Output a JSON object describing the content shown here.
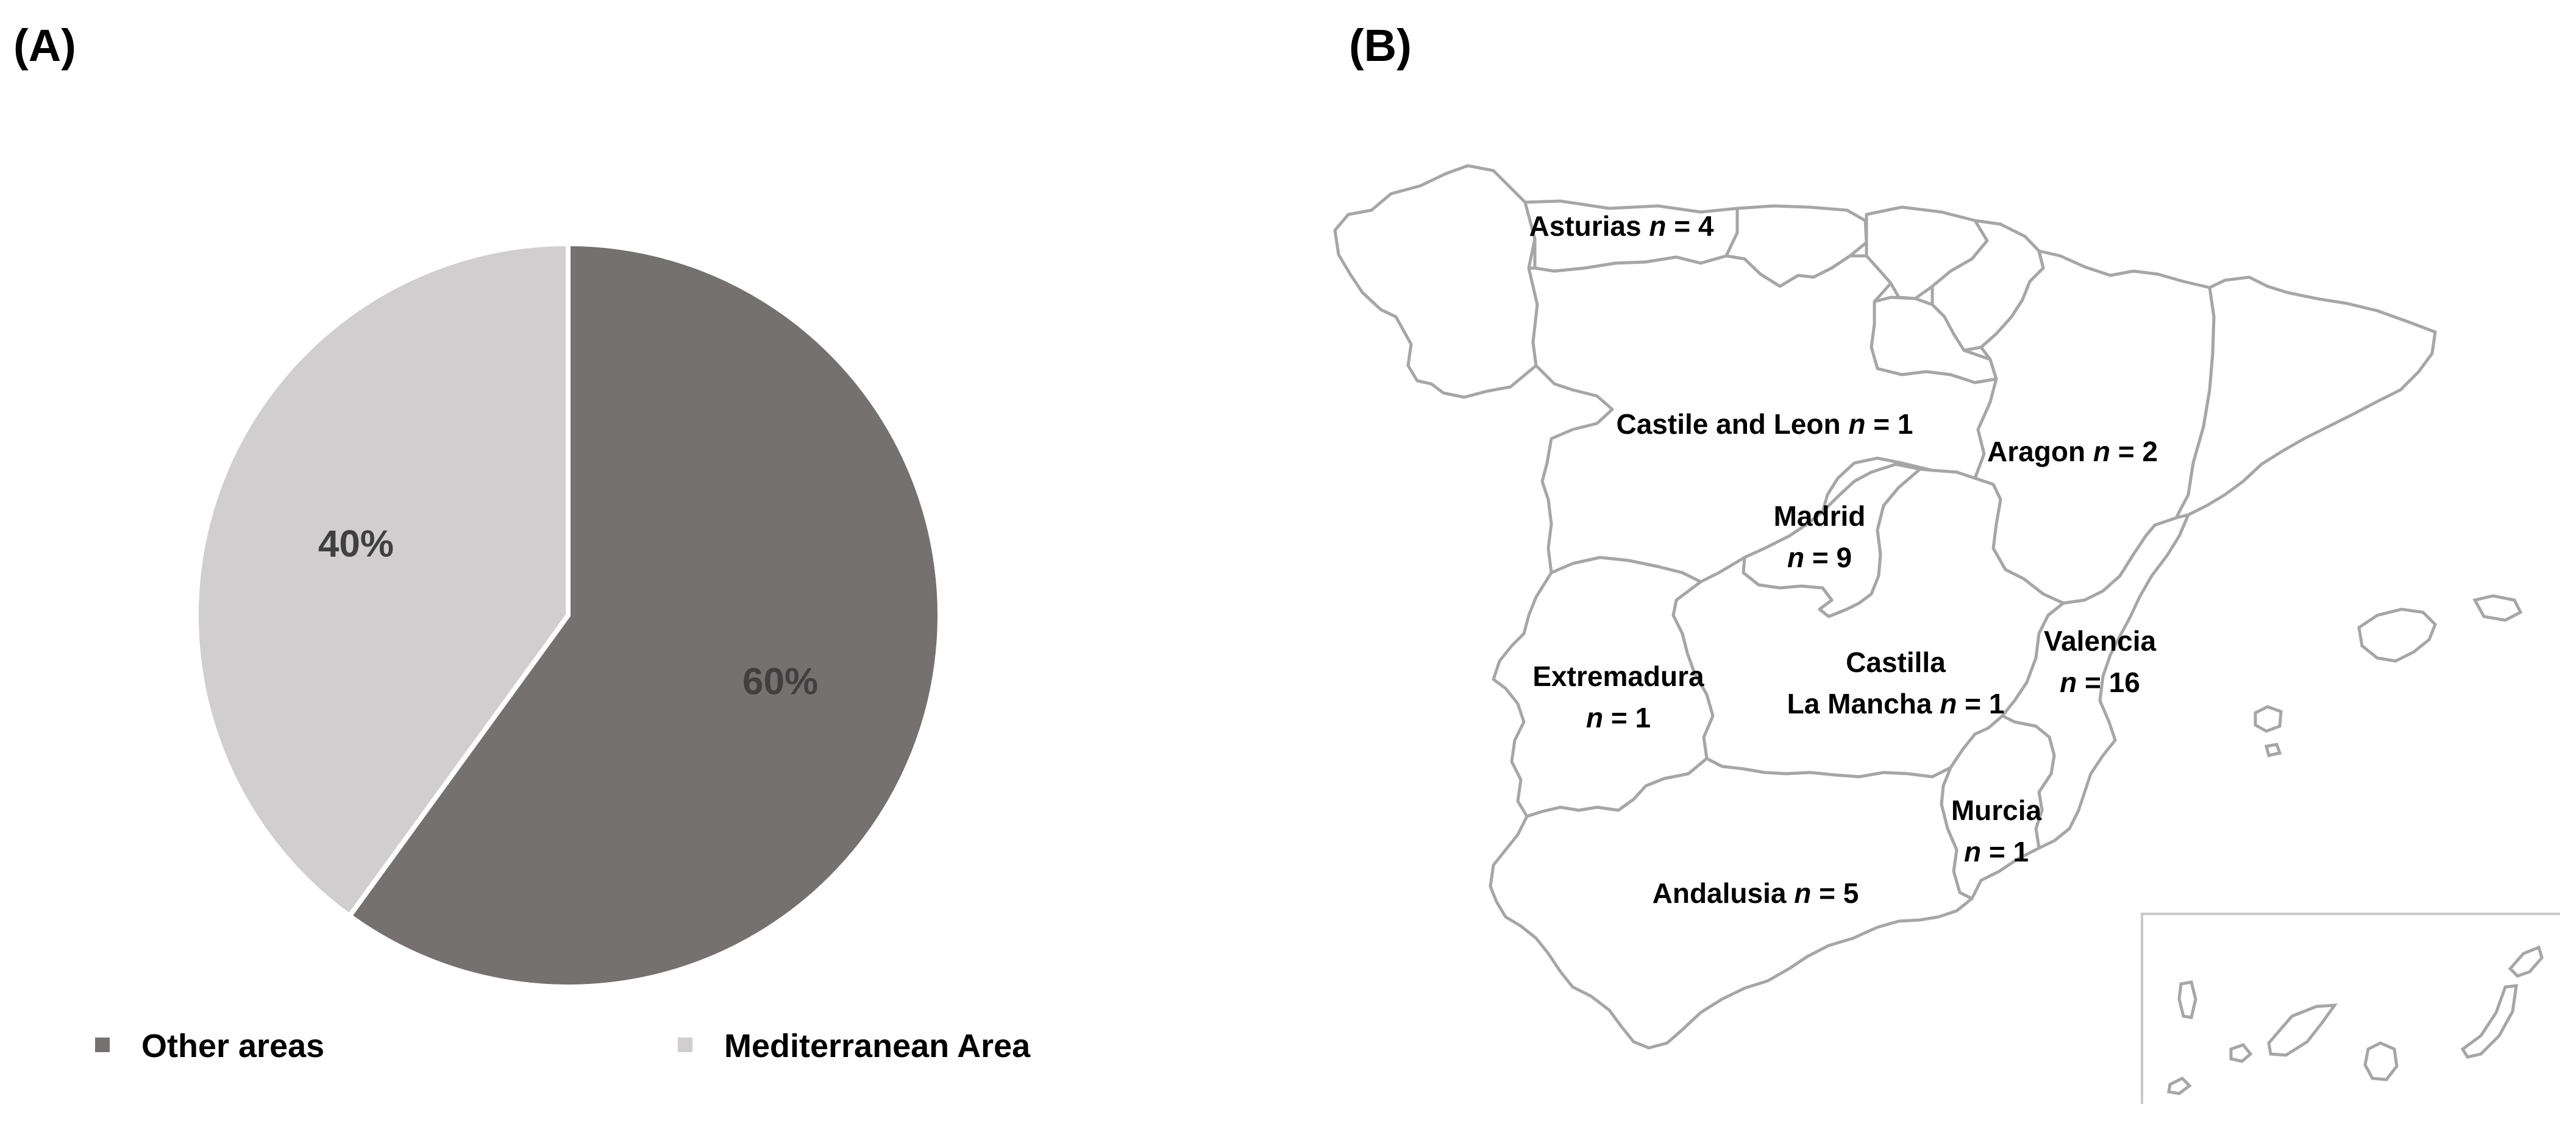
{
  "panels": {
    "a_label": "(A)",
    "b_label": "(B)"
  },
  "chart_data": [
    {
      "type": "pie",
      "slices": [
        {
          "name": "Other areas",
          "value": 60,
          "label": "60%",
          "color": "#767171"
        },
        {
          "name": "Mediterranean Area",
          "value": 40,
          "label": "40%",
          "color": "#d0cece"
        }
      ],
      "legend": {
        "placement": "bottom",
        "entries": [
          "Other areas",
          "Mediterranean Area"
        ]
      }
    },
    {
      "type": "map",
      "regions": [
        {
          "id": "asturias",
          "lines": [
            [
              "Asturias ",
              {
                "i": "n"
              },
              " = 4"
            ]
          ]
        },
        {
          "id": "castile-leon",
          "lines": [
            [
              "Castile and Leon ",
              {
                "i": "n"
              },
              " = 1"
            ]
          ]
        },
        {
          "id": "aragon",
          "lines": [
            [
              "Aragon ",
              {
                "i": "n"
              },
              " = 2"
            ]
          ]
        },
        {
          "id": "madrid",
          "lines": [
            [
              "Madrid"
            ],
            [
              {
                "i": "n"
              },
              " = 9"
            ]
          ]
        },
        {
          "id": "castilla-la-mancha",
          "lines": [
            [
              "Castilla"
            ],
            [
              "La Mancha ",
              {
                "i": "n"
              },
              " = 1"
            ]
          ]
        },
        {
          "id": "valencia",
          "lines": [
            [
              "Valencia"
            ],
            [
              {
                "i": "n"
              },
              " = 16"
            ]
          ]
        },
        {
          "id": "extremadura",
          "lines": [
            [
              "Extremadura"
            ],
            [
              {
                "i": "n"
              },
              " = 1"
            ]
          ]
        },
        {
          "id": "murcia",
          "lines": [
            [
              "Murcia"
            ],
            [
              {
                "i": "n"
              },
              " = 1"
            ]
          ]
        },
        {
          "id": "andalusia",
          "lines": [
            [
              "Andalusia ",
              {
                "i": "n"
              },
              " = 5"
            ]
          ]
        }
      ],
      "colors": {
        "border": "#a6a6a6",
        "fill": "#ffffff"
      }
    }
  ]
}
